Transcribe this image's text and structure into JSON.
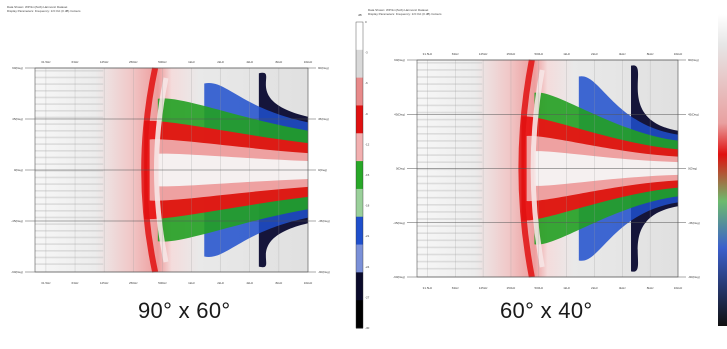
{
  "chart_data": [
    {
      "type": "heatmap",
      "header": [
        "Data Shown: WP/1m(SoS) Harmonic Dataset",
        "Display Parameters: Frequency: 1/3 Oct (0 dB) Colours"
      ],
      "caption": "90° x 60°",
      "x_ticks": [
        "31.5Hz",
        "63Hz",
        "125Hz",
        "250Hz",
        "500Hz",
        "1kHz",
        "2kHz",
        "4kHz",
        "8kHz",
        "16kHz"
      ],
      "y_ticks_left": [
        "90(Deg)",
        "45(Deg)",
        "0(Deg)",
        "-45(Deg)",
        "-90(Deg)"
      ],
      "y_ticks_right": [
        "90(Deg)",
        "45(Deg)",
        "0(Deg)",
        "-45(Deg)",
        "-90(Deg)"
      ],
      "ylim": [
        -90,
        90
      ],
      "coverage_deg": 90,
      "colormap": [
        "#ffffff",
        "#c8c8c8",
        "#d43030",
        "#f00000",
        "#1faa1f",
        "#1f5fd0",
        "#0a0a30"
      ]
    },
    {
      "type": "heatmap",
      "header": [
        "Data Shown: WP/1m(SoS) Harmonic Dataset",
        "Display Parameters: Frequency: 1/3 Oct (0 dB) Colours"
      ],
      "caption": "60° x 40°",
      "x_ticks": [
        "31.5Hz",
        "63Hz",
        "125Hz",
        "250Hz",
        "500Hz",
        "1kHz",
        "2kHz",
        "4kHz",
        "8kHz",
        "16kHz"
      ],
      "y_ticks_left": [
        "90(Deg)",
        "45(Deg)",
        "0(Deg)",
        "-45(Deg)",
        "-90(Deg)"
      ],
      "y_ticks_right": [
        "90(Deg)",
        "45(Deg)",
        "0(Deg)",
        "-45(Deg)",
        "-90(Deg)"
      ],
      "ylim": [
        -90,
        90
      ],
      "coverage_deg": 60,
      "colormap": [
        "#ffffff",
        "#c8c8c8",
        "#d43030",
        "#f00000",
        "#1faa1f",
        "#1f5fd0",
        "#0a0a30"
      ]
    }
  ],
  "colorbar": {
    "header": [
      "dB"
    ],
    "labels": [
      "0",
      "-3",
      "-6",
      "-9",
      "-12",
      "-15",
      "-18",
      "-21",
      "-24",
      "-27",
      "-30"
    ],
    "colors": [
      "#ffffff",
      "#d9d9d9",
      "#e88a8a",
      "#e01010",
      "#f2b0b0",
      "#28a828",
      "#9ad09a",
      "#1f4fcc",
      "#7a90d8",
      "#0a0a2a",
      "#000000"
    ]
  },
  "colors": {
    "grid": "#9a9a9a",
    "axis": "#555555"
  }
}
